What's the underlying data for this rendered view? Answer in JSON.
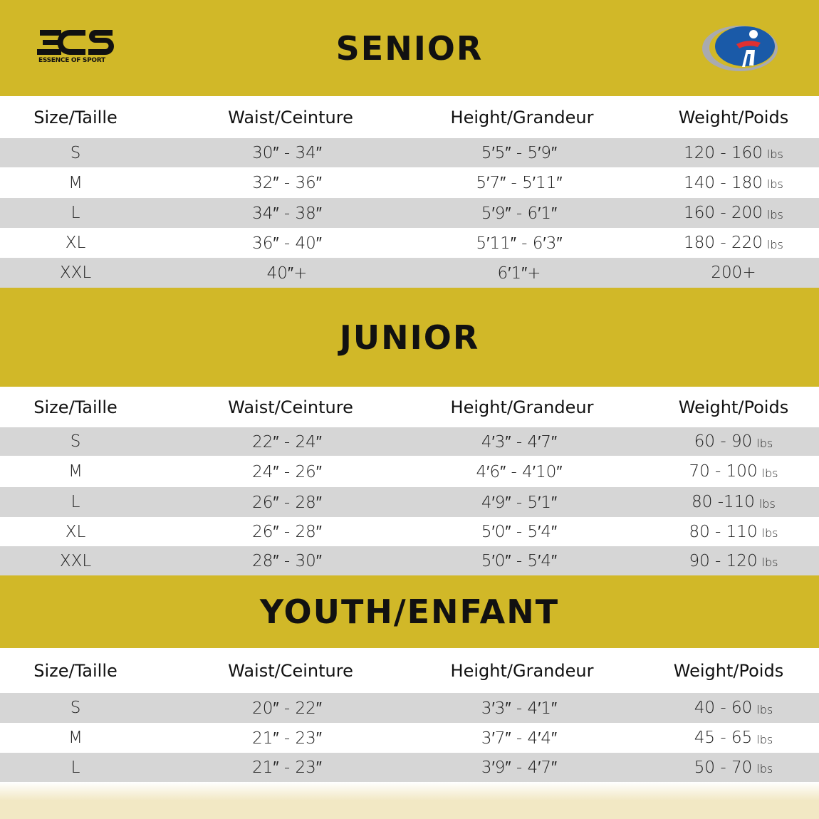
{
  "brand": {
    "logo_text": "EOS",
    "tagline": "ESSENCE OF SPORT"
  },
  "colors": {
    "band": "#d1b828",
    "row_alt": "#d6d6d6",
    "footer": "#f2e8c4"
  },
  "headers": {
    "size": "Size/Taille",
    "waist": "Waist/Ceinture",
    "height": "Height/Grandeur",
    "weight": "Weight/Poids"
  },
  "sections": [
    {
      "title": "SENIOR",
      "rows": [
        {
          "size": "S",
          "waist": "30″ - 34″",
          "height": "5′5″ - 5′9″",
          "weight": "120 - 160",
          "unit": "lbs"
        },
        {
          "size": "M",
          "waist": "32″ - 36″",
          "height": "5′7″ - 5′11″",
          "weight": "140 - 180",
          "unit": "lbs"
        },
        {
          "size": "L",
          "waist": "34″ - 38″",
          "height": "5′9″ - 6′1″",
          "weight": "160 - 200",
          "unit": "lbs"
        },
        {
          "size": "XL",
          "waist": "36″ - 40″",
          "height": "5′11″ - 6′3″",
          "weight": "180 - 220",
          "unit": "lbs"
        },
        {
          "size": "XXL",
          "waist": "40″+",
          "height": "6′1″+",
          "weight": "200+",
          "unit": ""
        }
      ]
    },
    {
      "title": "JUNIOR",
      "rows": [
        {
          "size": "S",
          "waist": "22″ - 24″",
          "height": "4′3″ - 4′7″",
          "weight": "60 - 90",
          "unit": "lbs"
        },
        {
          "size": "M",
          "waist": "24″ - 26″",
          "height": "4′6″ - 4′10″",
          "weight": "70 - 100",
          "unit": "lbs"
        },
        {
          "size": "L",
          "waist": "26″ - 28″",
          "height": "4′9″ - 5′1″",
          "weight": "80 -110",
          "unit": "lbs"
        },
        {
          "size": "XL",
          "waist": "26″ - 28″",
          "height": "5′0″ - 5′4″",
          "weight": "80 - 110",
          "unit": "lbs"
        },
        {
          "size": "XXL",
          "waist": "28″ - 30″",
          "height": "5′0″ - 5′4″",
          "weight": "90 - 120",
          "unit": "lbs"
        }
      ]
    },
    {
      "title": "YOUTH/ENFANT",
      "rows": [
        {
          "size": "S",
          "waist": "20″ - 22″",
          "height": "3′3″ - 4′1″",
          "weight": "40 - 60",
          "unit": "lbs"
        },
        {
          "size": "M",
          "waist": "21″ - 23″",
          "height": "3′7″ - 4′4″",
          "weight": "45 - 65",
          "unit": "lbs"
        },
        {
          "size": "L",
          "waist": "21″ - 23″",
          "height": "3′9″ - 4′7″",
          "weight": "50 - 70",
          "unit": "lbs"
        }
      ]
    }
  ]
}
